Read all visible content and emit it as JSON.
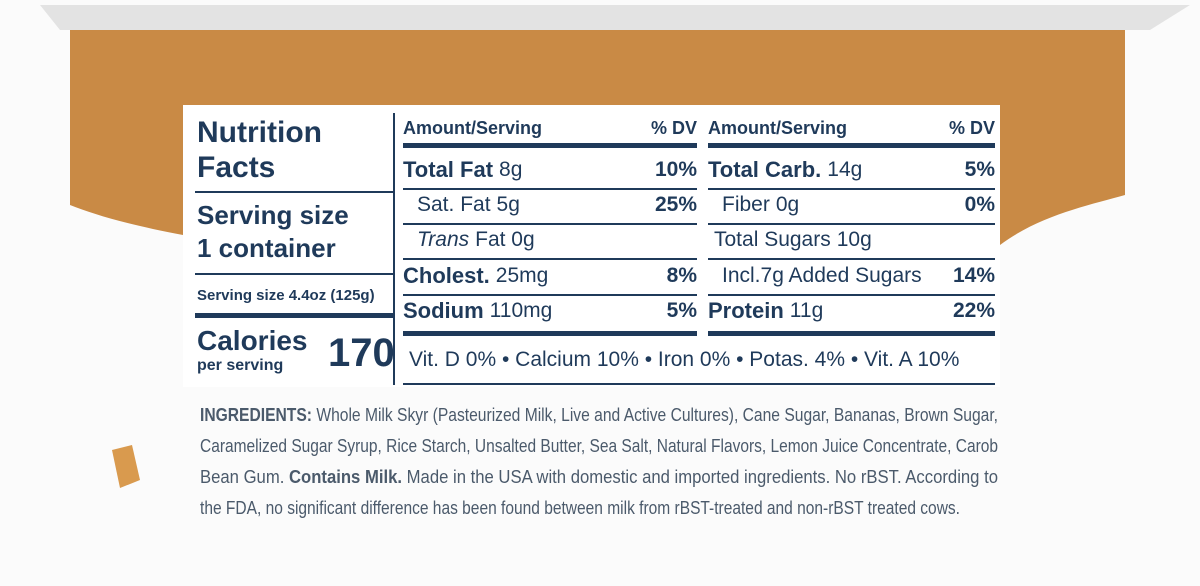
{
  "label": {
    "title": "Nutrition Facts",
    "serving_size_heading": "Serving size",
    "serving_size_amount": "1 container",
    "serving_size_detail": "Serving size 4.4oz (125g)",
    "calories_label": "Calories",
    "calories_sub": "per serving",
    "calories_value": "170",
    "left_table": {
      "header_amount": "Amount/Serving",
      "header_dv": "% DV",
      "rows": [
        {
          "name": "Total Fat",
          "amount": "8g",
          "dv": "10%"
        },
        {
          "name": "Sat. Fat",
          "amount": "5g",
          "dv": "25%"
        },
        {
          "name": "Trans",
          "amount": "Fat 0g"
        },
        {
          "name": "Cholest.",
          "amount": "25mg",
          "dv": "8%"
        },
        {
          "name": "Sodium",
          "amount": "110mg",
          "dv": "5%"
        }
      ]
    },
    "right_table": {
      "header_amount": "Amount/Serving",
      "header_dv": "% DV",
      "rows": [
        {
          "name": "Total Carb.",
          "amount": "14g",
          "dv": "5%"
        },
        {
          "name": "Fiber",
          "amount": "0g",
          "dv": "0%"
        },
        {
          "name": "Total Sugars",
          "amount": "10g"
        },
        {
          "name": "Incl.7g Added Sugars",
          "dv": "14%"
        },
        {
          "name": "Protein",
          "amount": "11g",
          "dv": "22%"
        }
      ]
    },
    "vitamins": "Vit. D 0% • Calcium 10% • Iron 0% • Potas. 4% • Vit. A 10%"
  },
  "ingredients": {
    "line_1": {
      "label": "INGREDIENTS:",
      "text": " Whole Milk Skyr (Pasteurized Milk, Live and Active Cultures), Cane Sugar, Bananas, Brown Sugar,"
    },
    "line_2": "Caramelized Sugar Syrup, Rice Starch, Unsalted Butter, Sea Salt, Natural Flavors, Lemon Juice Concentrate, Carob",
    "line_3": {
      "before": "Bean Gum. ",
      "bold": "Contains Milk.",
      "after": " Made in the USA with domestic and imported ingredients. No rBST. According to"
    },
    "line_4": "the FDA, no significant difference has been found between milk from rBST-treated and non-rBST treated cows."
  }
}
